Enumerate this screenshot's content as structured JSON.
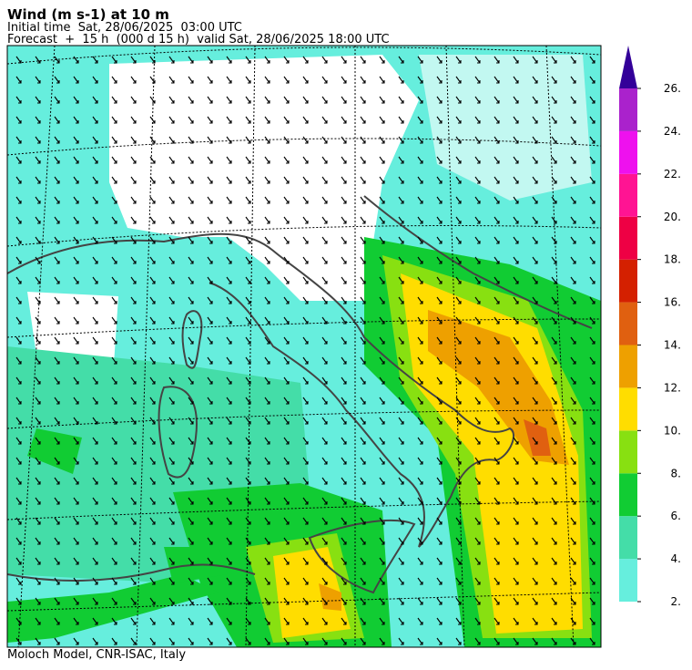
{
  "header": {
    "title": "Wind (m s-1) at 10 m",
    "initial_time": "Initial time  Sat, 28/06/2025  03:00 UTC",
    "forecast": "Forecast  +  15 h  (000 d 15 h)  valid Sat, 28/06/2025 18:00 UTC"
  },
  "colorbar": {
    "levels": [
      {
        "value": 2,
        "label": "2."
      },
      {
        "value": 4,
        "label": "4."
      },
      {
        "value": 6,
        "label": "6."
      },
      {
        "value": 8,
        "label": "8."
      },
      {
        "value": 10,
        "label": "10."
      },
      {
        "value": 12,
        "label": "12."
      },
      {
        "value": 14,
        "label": "14."
      },
      {
        "value": 16,
        "label": "16."
      },
      {
        "value": 18,
        "label": "18."
      },
      {
        "value": 20,
        "label": "20."
      },
      {
        "value": 22,
        "label": "22."
      },
      {
        "value": 24,
        "label": "24."
      },
      {
        "value": 26,
        "label": "26."
      }
    ],
    "colors": [
      "#66eedd",
      "#44dda8",
      "#11cc33",
      "#88e011",
      "#ffdd00",
      "#eea000",
      "#e06010",
      "#d42000",
      "#ee0044",
      "#ff1493",
      "#ee11ee",
      "#aa22cc"
    ],
    "over_color": "#330099"
  },
  "footer": "Moloch Model, CNR-ISAC, Italy"
}
